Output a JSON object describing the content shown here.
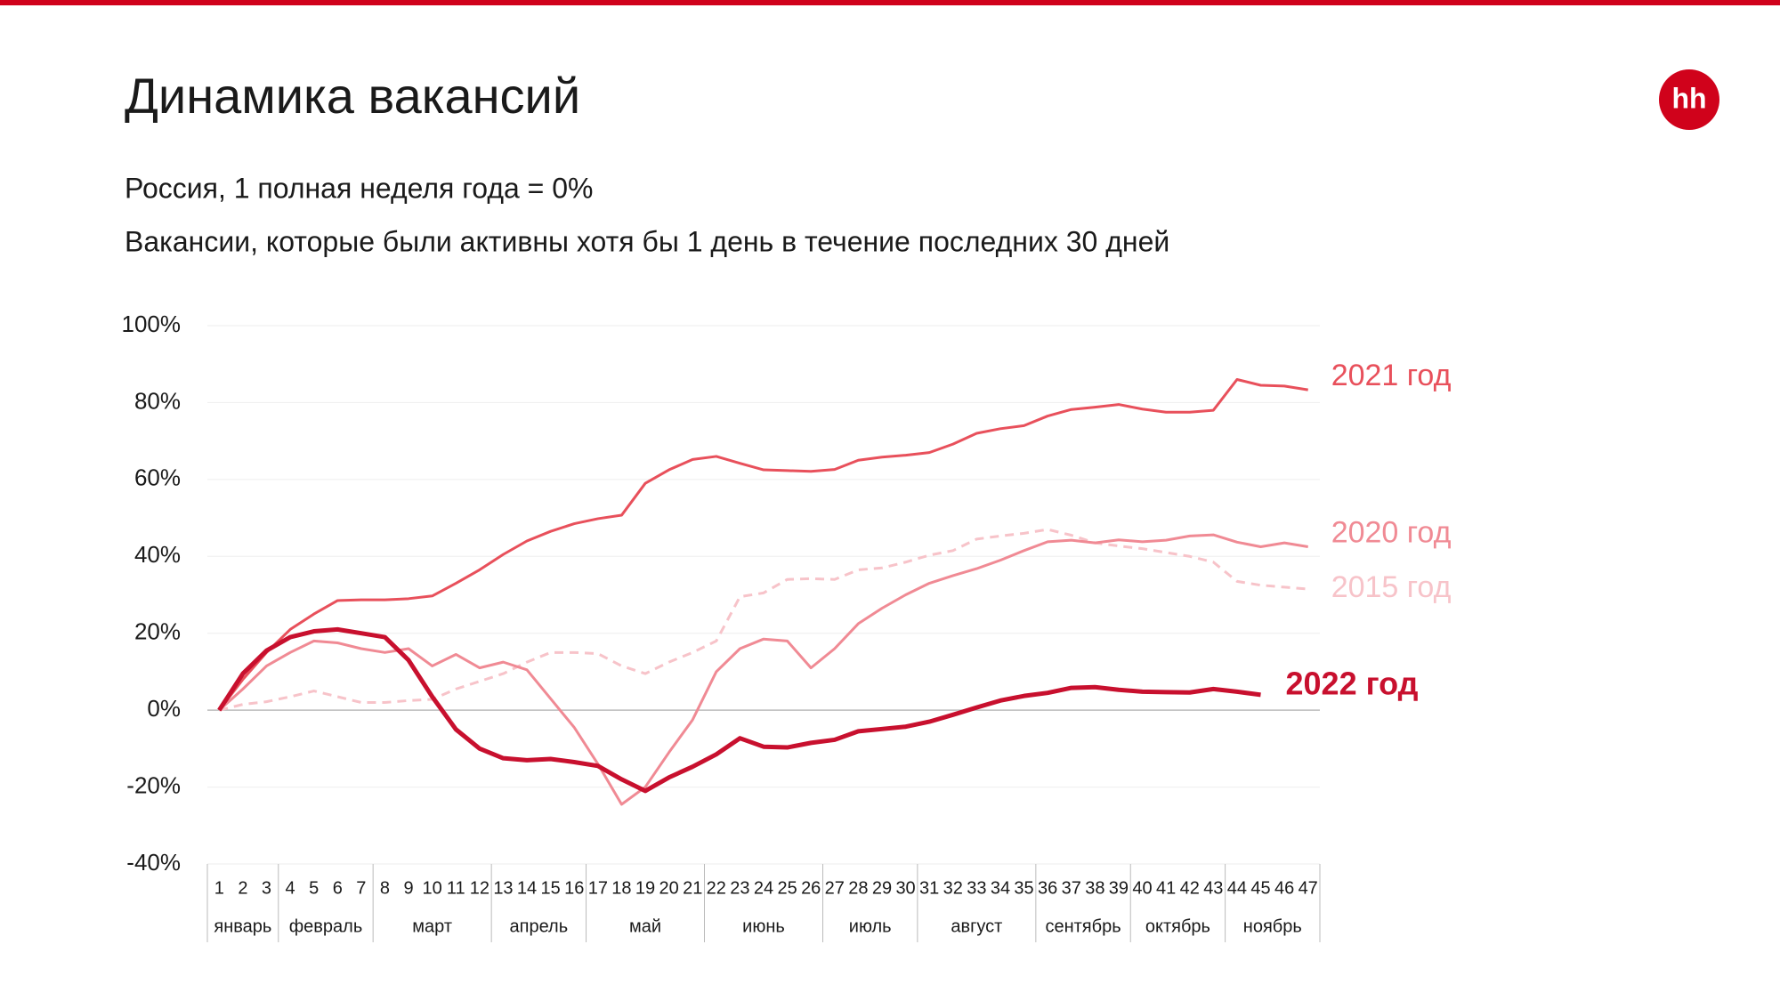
{
  "logo": "hh",
  "chart_data": {
    "type": "line",
    "title": "Динамика вакансий",
    "subtitle": "Россия, 1 полная неделя года = 0%",
    "subtitle2": "Вакансии, которые были активны хотя бы 1 день в течение последних 30 дней",
    "categories": [
      "1",
      "2",
      "3",
      "4",
      "5",
      "6",
      "7",
      "8",
      "9",
      "10",
      "11",
      "12",
      "13",
      "14",
      "15",
      "16",
      "17",
      "18",
      "19",
      "20",
      "21",
      "22",
      "23",
      "24",
      "25",
      "26",
      "27",
      "28",
      "29",
      "30",
      "31",
      "32",
      "33",
      "34",
      "35",
      "36",
      "37",
      "38",
      "39",
      "40",
      "41",
      "42",
      "43",
      "44",
      "45",
      "46",
      "47"
    ],
    "months": [
      {
        "name": "январь",
        "span": 3
      },
      {
        "name": "февраль",
        "span": 4
      },
      {
        "name": "март",
        "span": 5
      },
      {
        "name": "апрель",
        "span": 4
      },
      {
        "name": "май",
        "span": 5
      },
      {
        "name": "июнь",
        "span": 5
      },
      {
        "name": "июль",
        "span": 4
      },
      {
        "name": "август",
        "span": 5
      },
      {
        "name": "сентябрь",
        "span": 4
      },
      {
        "name": "октябрь",
        "span": 4
      },
      {
        "name": "ноябрь",
        "span": 4
      }
    ],
    "ylim": [
      -40,
      100
    ],
    "yticks": [
      {
        "value": -40,
        "label": "-40%"
      },
      {
        "value": -20,
        "label": "-20%"
      },
      {
        "value": 0,
        "label": "0%"
      },
      {
        "value": 20,
        "label": "20%"
      },
      {
        "value": 40,
        "label": "40%"
      },
      {
        "value": 60,
        "label": "60%"
      },
      {
        "value": 80,
        "label": "80%"
      },
      {
        "value": 100,
        "label": "100%"
      }
    ],
    "grid": true,
    "series": [
      {
        "name": "2015 год",
        "color": "#f7c3c9",
        "dashed": true,
        "values": [
          0,
          1.5,
          2.2,
          3.5,
          5,
          3.5,
          2,
          2,
          2.5,
          2.8,
          5.5,
          7.5,
          9.5,
          12.5,
          15,
          15,
          14.7,
          11.5,
          9.5,
          12.5,
          15,
          18,
          29.5,
          30.5,
          34,
          34.2,
          34,
          36.5,
          37,
          38.5,
          40.3,
          41.5,
          44.5,
          45.3,
          46,
          47,
          45.5,
          43.5,
          42.7,
          42,
          41,
          40,
          38.5,
          33.5,
          32.5,
          32,
          31.5
        ]
      },
      {
        "name": "2020 год",
        "color": "#f08a94",
        "values": [
          0,
          5.5,
          11.5,
          15,
          18,
          17.5,
          16,
          15,
          16,
          11.5,
          14.5,
          11,
          12.5,
          10.5,
          3,
          -4.5,
          -14,
          -24.5,
          -20,
          -11,
          -2.5,
          10,
          16,
          18.5,
          18,
          11,
          16,
          22.5,
          26.5,
          30,
          33,
          35,
          36.8,
          39,
          41.5,
          43.8,
          44.2,
          43.5,
          44.3,
          43.8,
          44.2,
          45.3,
          45.6,
          43.7,
          42.5,
          43.5,
          42.5
        ]
      },
      {
        "name": "2021 год",
        "color": "#e8505b",
        "values": [
          0,
          8,
          15,
          21,
          25,
          28.5,
          28.7,
          28.7,
          29,
          29.7,
          33,
          36.5,
          40.5,
          44,
          46.5,
          48.5,
          49.8,
          50.7,
          59,
          62.5,
          65.2,
          66,
          64.2,
          62.5,
          62.3,
          62.1,
          62.6,
          65,
          65.8,
          66.3,
          67,
          69.2,
          72,
          73.2,
          74,
          76.5,
          78.2,
          78.8,
          79.5,
          78.3,
          77.5,
          77.5,
          78,
          86,
          84.5,
          84.3,
          83.3
        ]
      },
      {
        "name": "2022 год",
        "color": "#c8102e",
        "values": [
          0,
          9.5,
          15.5,
          19,
          20.5,
          21,
          20,
          19,
          13,
          3.5,
          -5,
          -10,
          -12.5,
          -13,
          -12.7,
          -13.5,
          -14.5,
          -18,
          -21,
          -17.5,
          -14.7,
          -11.5,
          -7.3,
          -9.5,
          -9.7,
          -8.5,
          -7.7,
          -5.5,
          -4.9,
          -4.3,
          -3,
          -1.2,
          0.7,
          2.5,
          3.7,
          4.5,
          5.8,
          6,
          5.3,
          4.8,
          4.7,
          4.6,
          5.5,
          4.8,
          4,
          null,
          null
        ]
      }
    ]
  }
}
